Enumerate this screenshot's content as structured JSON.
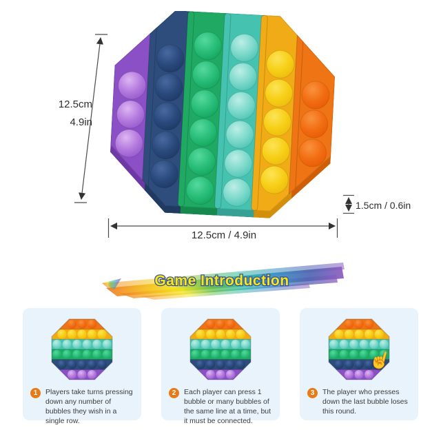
{
  "page": {
    "background": "#ffffff"
  },
  "product_photo": {
    "description": "rainbow octagon pop-it bubble fidget toy, top view, slightly rotated",
    "toy": {
      "rotation_deg": 3,
      "palette": {
        "purple": {
          "body": "#8b50c5",
          "wall": "#6e39a5",
          "hi": "#ddb6f2",
          "mid": "#b47ade",
          "lo": "#9356cb"
        },
        "navy": {
          "body": "#2e4d7c",
          "wall": "#213a62",
          "hi": "#48699f",
          "mid": "#2a4a7d",
          "lo": "#1d3761"
        },
        "green": {
          "body": "#1fa963",
          "wall": "#168a4e",
          "hi": "#55d99d",
          "mid": "#28bd78",
          "lo": "#13a35b"
        },
        "teal": {
          "body": "#45c3b0",
          "wall": "#35a093",
          "hi": "#bdeee6",
          "mid": "#7cd9cb",
          "lo": "#4cc2b2"
        },
        "yellow": {
          "body": "#f1ab17",
          "wall": "#d28f0c",
          "hi": "#fde456",
          "mid": "#f7cf17",
          "lo": "#edb90e"
        },
        "orange": {
          "body": "#ef7414",
          "wall": "#cf5e08",
          "hi": "#f9923d",
          "mid": "#f26d12",
          "lo": "#e65a06"
        }
      },
      "columns": [
        {
          "color": "purple",
          "bubbles": 3
        },
        {
          "color": "navy",
          "bubbles": 5
        },
        {
          "color": "green",
          "bubbles": 6
        },
        {
          "color": "teal",
          "bubbles": 6
        },
        {
          "color": "yellow",
          "bubbles": 5
        },
        {
          "color": "orange",
          "bubbles": 3
        }
      ]
    },
    "dimensions": {
      "height_label_cm": "12.5cm",
      "height_label_in": "4.9in",
      "width_label": "12.5cm / 4.9in",
      "thickness_label": "1.5cm / 0.6in"
    }
  },
  "banner": {
    "title": "Game Introduction",
    "title_fill": "#f4ea16",
    "title_outline": "#3b4fa0",
    "rainbow": [
      "#ee7b28",
      "#f5b31d",
      "#f2e41c",
      "#62bd4a",
      "#2eb89e",
      "#3a8fc4",
      "#4f64b2",
      "#8e5bbf"
    ]
  },
  "instructions": {
    "card_background": "#e8f3fb",
    "badge_color": "#e87b17",
    "mini_toy_rows": [
      {
        "color": "orange",
        "bubbles": 3
      },
      {
        "color": "yellow",
        "bubbles": 5
      },
      {
        "color": "teal",
        "bubbles": 6
      },
      {
        "color": "green",
        "bubbles": 6
      },
      {
        "color": "navy",
        "bubbles": 5
      },
      {
        "color": "purple",
        "bubbles": 3
      }
    ],
    "cards": [
      {
        "number": "1",
        "text": "Players take turns pressing down any number of bubbles they wish in a single row."
      },
      {
        "number": "2",
        "text": "Each player can press 1 bubble or many bubbles of the same line at a time, but it must be connected."
      },
      {
        "number": "3",
        "text": "The player who presses down the last bubble loses this round.",
        "icon": "press-hand-icon"
      }
    ]
  }
}
